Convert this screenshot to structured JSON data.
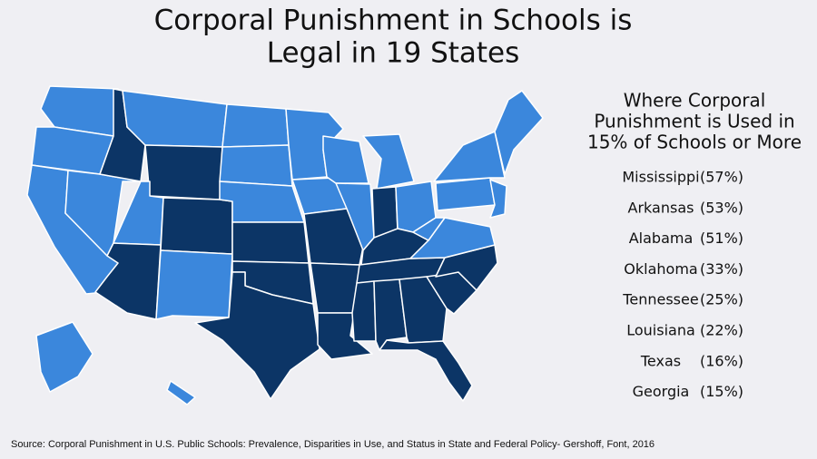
{
  "header": {
    "title": [
      "Corporal Punishment in Schools is",
      "Legal in 19 States"
    ]
  },
  "panel": {
    "heading": [
      "Where Corporal",
      "Punishment is Used in",
      "15% of Schools or More"
    ],
    "items": [
      {
        "state": "Mississippi",
        "share": "(57%)"
      },
      {
        "state": "Arkansas",
        "share": "(53%)"
      },
      {
        "state": "Alabama",
        "share": "(51%)"
      },
      {
        "state": "Oklahoma",
        "share": "(33%)"
      },
      {
        "state": "Tennessee",
        "share": "(25%)"
      },
      {
        "state": "Louisiana",
        "share": "(22%)"
      },
      {
        "state": "Texas",
        "share": "(16%)"
      },
      {
        "state": "Georgia",
        "share": "(15%)"
      }
    ]
  },
  "footer": {
    "source": "Source: Corporal Punishment in U.S. Public Schools: Prevalence, Disparities in Use, and Status in State and Federal Policy- Gershoff, Font, 2016"
  }
}
